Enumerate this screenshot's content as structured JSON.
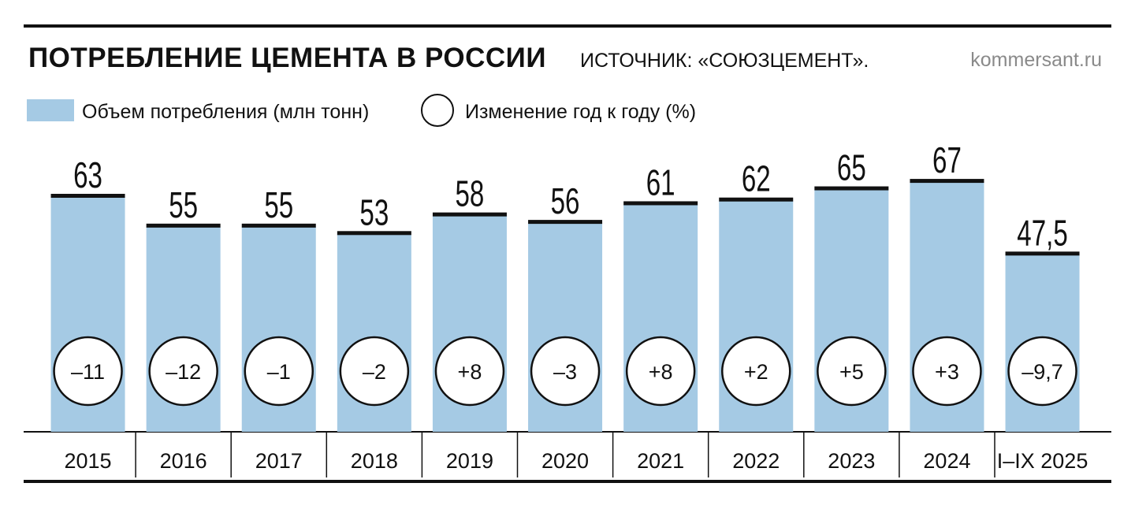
{
  "header": {
    "title": "ПОТРЕБЛЕНИЕ ЦЕМЕНТА В РОССИИ",
    "source": "ИСТОЧНИК: «СОЮЗЦЕМЕНТ».",
    "brand": "kommersant.ru"
  },
  "legend": {
    "volume_label": "Объем потребления (млн тонн)",
    "change_label": "Изменение год к году (%)"
  },
  "colors": {
    "bar": "#a5cae4",
    "bar_cap": "#111111",
    "text": "#111111"
  },
  "chart_data": {
    "type": "bar",
    "categories": [
      "2015",
      "2016",
      "2017",
      "2018",
      "2019",
      "2020",
      "2021",
      "2022",
      "2023",
      "2024",
      "I–IX 2025"
    ],
    "series": [
      {
        "name": "Объем потребления (млн тонн)",
        "values": [
          63,
          55,
          55,
          53,
          58,
          56,
          61,
          62,
          65,
          67,
          47.5
        ],
        "value_labels": [
          "63",
          "55",
          "55",
          "53",
          "58",
          "56",
          "61",
          "62",
          "65",
          "67",
          "47,5"
        ]
      },
      {
        "name": "Изменение год к году (%)",
        "values": [
          -11,
          -12,
          -1,
          -2,
          8,
          -3,
          8,
          2,
          5,
          3,
          -9.7
        ],
        "value_labels": [
          "–11",
          "–12",
          "–1",
          "–2",
          "+8",
          "–3",
          "+8",
          "+2",
          "+5",
          "+3",
          "–9,7"
        ]
      }
    ],
    "legend_position": "top-left",
    "grid": false
  }
}
